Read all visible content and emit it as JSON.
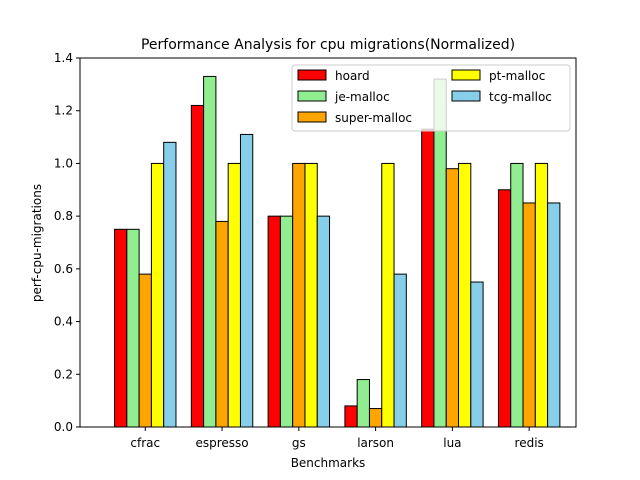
{
  "chart_data": {
    "type": "bar",
    "title": "Performance Analysis for cpu migrations(Normalized)",
    "xlabel": "Benchmarks",
    "ylabel": "perf-cpu-migrations",
    "ylim": [
      0,
      1.4
    ],
    "yticks": [
      "0.0",
      "0.2",
      "0.4",
      "0.6",
      "0.8",
      "1.0",
      "1.2",
      "1.4"
    ],
    "categories": [
      "cfrac",
      "espresso",
      "gs",
      "larson",
      "lua",
      "redis"
    ],
    "legend_position": "upper right, two columns",
    "series": [
      {
        "name": "hoard",
        "color": "#ff0000",
        "values": [
          0.75,
          1.22,
          0.8,
          0.08,
          1.13,
          0.9
        ]
      },
      {
        "name": "je-malloc",
        "color": "#90ee90",
        "values": [
          0.75,
          1.33,
          0.8,
          0.18,
          1.32,
          1.0
        ]
      },
      {
        "name": "super-malloc",
        "color": "#ffa500",
        "values": [
          0.58,
          0.78,
          1.0,
          0.07,
          0.98,
          0.85
        ]
      },
      {
        "name": "pt-malloc",
        "color": "#ffff00",
        "values": [
          1.0,
          1.0,
          1.0,
          1.0,
          1.0,
          1.0
        ]
      },
      {
        "name": "tcg-malloc",
        "color": "#87ceeb",
        "values": [
          1.08,
          1.11,
          0.8,
          0.58,
          0.55,
          0.85
        ]
      }
    ]
  }
}
